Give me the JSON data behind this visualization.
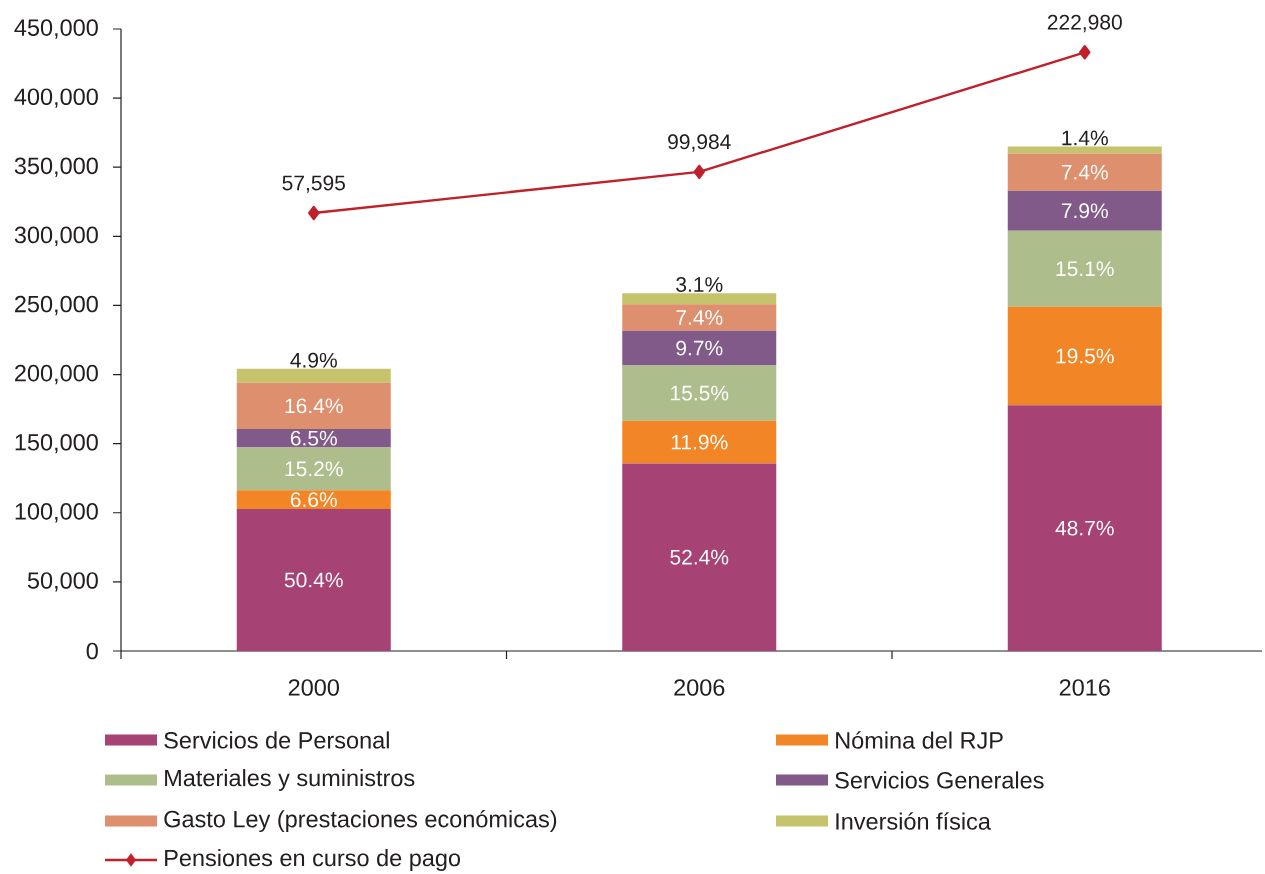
{
  "chart_data": {
    "type": "bar",
    "stacked": true,
    "categories": [
      "2000",
      "2006",
      "2016"
    ],
    "series": [
      {
        "name": "Servicios de Personal",
        "color": "#a64374",
        "values": [
          102800,
          135700,
          177800
        ]
      },
      {
        "name": "Nómina del RJP",
        "color": "#f28627",
        "values": [
          13500,
          30800,
          71200
        ]
      },
      {
        "name": "Materiales y suministros",
        "color": "#adbd8c",
        "values": [
          31000,
          40100,
          55100
        ]
      },
      {
        "name": "Servicios Generales",
        "color": "#825a8a",
        "values": [
          13300,
          25100,
          28800
        ]
      },
      {
        "name": "Gasto Ley (prestaciones económicas)",
        "color": "#dd8f6e",
        "values": [
          33500,
          19200,
          27000
        ]
      },
      {
        "name": "Inversión física",
        "color": "#c5c46c",
        "values": [
          10000,
          8000,
          5100
        ]
      },
      {
        "name": "Pensiones en curso de pago",
        "type": "line",
        "axis": "y2",
        "color": "#c0202a",
        "marker": "diamond",
        "line_style": "solid",
        "values": [
          57595,
          99984,
          222980
        ],
        "value_labels": [
          "57,595",
          "99,984",
          "222,980"
        ]
      }
    ],
    "annotations": [
      "50.4%",
      {
        "text": "6.6%",
        "x": "2000",
        "y": 116300
      },
      {
        "text": "15.2%",
        "x": "2000",
        "y": 147300
      },
      {
        "text": "6.5%",
        "x": "2000",
        "y": 160600
      },
      {
        "text": "16.4%",
        "x": "2000",
        "y": 194100
      },
      {
        "text": "4.9%",
        "x": "2000",
        "y": 204100
      },
      "52.4%",
      {
        "text": "11.9%",
        "x": "2006",
        "y": 166500
      },
      {
        "text": "15.5%",
        "x": "2006",
        "y": 206600
      },
      {
        "text": "9.7%",
        "x": "2006",
        "y": 231700
      },
      {
        "text": "7.4%",
        "x": "2006",
        "y": 250900
      },
      {
        "text": "3.1%",
        "x": "2006",
        "y": 258900
      },
      "48.7%",
      {
        "text": "19.5%",
        "x": "2016",
        "y": 249000
      },
      {
        "text": "15.1%",
        "x": "2016",
        "y": 304100
      },
      {
        "text": "7.9%",
        "x": "2016",
        "y": 332900
      },
      {
        "text": "7.4%",
        "x": "2016",
        "y": 359900
      },
      {
        "text": "1.4%",
        "x": "2016",
        "y": 365000
      }
    ],
    "ylim": [
      0,
      450000
    ],
    "yticks": [
      0,
      {
        "value": 50000,
        "label": "50,000"
      },
      {
        "value": 100000,
        "label": "100,000"
      },
      {
        "value": 150000,
        "label": "150,000"
      },
      {
        "value": 200000,
        "label": "200,000"
      },
      {
        "value": 250000,
        "label": "250,000"
      },
      {
        "value": 300000,
        "label": "300,000"
      },
      {
        "value": 350000,
        "label": "350,000"
      },
      {
        "value": 400000,
        "label": "400,000"
      },
      {
        "value": 450000,
        "label": "450,000"
      }
    ],
    "y2lim": [
      -393000,
      247000
    ],
    "legend": "bottom"
  }
}
